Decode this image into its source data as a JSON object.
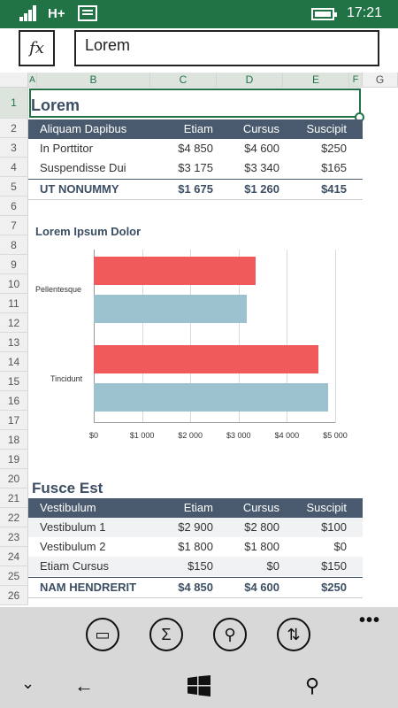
{
  "status": {
    "network": "H+",
    "time": "17:21"
  },
  "formula": {
    "fx_label": "fx",
    "value": "Lorem"
  },
  "columns": [
    "A",
    "B",
    "C",
    "D",
    "E",
    "F",
    "G"
  ],
  "rows": [
    "1",
    "2",
    "3",
    "4",
    "5",
    "6",
    "7",
    "8",
    "9",
    "10",
    "11",
    "12",
    "13",
    "14",
    "15",
    "16",
    "17",
    "18",
    "19",
    "20",
    "21",
    "22",
    "23",
    "24",
    "25",
    "26"
  ],
  "table1": {
    "title": "Lorem",
    "headers": [
      "Aliquam Dapibus",
      "Etiam",
      "Cursus",
      "Suscipit"
    ],
    "rows": [
      [
        "In Porttitor",
        "$4 850",
        "$4 600",
        "$250"
      ],
      [
        "Suspendisse Dui",
        "$3 175",
        "$3 340",
        "$165"
      ]
    ],
    "total": [
      "UT NONUMMY",
      "$1 675",
      "$1 260",
      "$415"
    ]
  },
  "chart_data": {
    "type": "bar",
    "orientation": "horizontal",
    "title": "Lorem Ipsum Dolor",
    "categories": [
      "Pellentesque",
      "Tincidunt"
    ],
    "series": [
      {
        "color": "#f15a5a",
        "values": [
          3350,
          4650
        ]
      },
      {
        "color": "#9bc2ce",
        "values": [
          3175,
          4850
        ]
      }
    ],
    "x_ticks": [
      "$0",
      "$1 000",
      "$2 000",
      "$3 000",
      "$4 000",
      "$5 000"
    ],
    "xlim": [
      0,
      5000
    ],
    "grid": true,
    "legend": "none"
  },
  "table2": {
    "title": "Fusce Est",
    "headers": [
      "Vestibulum",
      "Etiam",
      "Cursus",
      "Suscipit"
    ],
    "rows": [
      [
        "Vestibulum 1",
        "$2 900",
        "$2 800",
        "$100"
      ],
      [
        "Vestibulum 2",
        "$1 800",
        "$1 800",
        "$0"
      ],
      [
        "Etiam Cursus",
        "$150",
        "$0",
        "$150"
      ]
    ],
    "total": [
      "NAM HENDRERIT",
      "$4 850",
      "$4 600",
      "$250"
    ]
  },
  "appbar": {
    "buttons": [
      "comment-icon",
      "sum-icon",
      "search-icon",
      "sort-icon"
    ],
    "glyphs": [
      "▭",
      "Σ",
      "⚲",
      "⇅"
    ],
    "more": "•••"
  },
  "nav": {
    "back": "←",
    "windows": "windows-logo",
    "search": "⚲",
    "chevron": "⌄"
  },
  "colors": {
    "accent": "#217346",
    "header_bg": "#4a5a6e",
    "title_text": "#3c4e63"
  }
}
